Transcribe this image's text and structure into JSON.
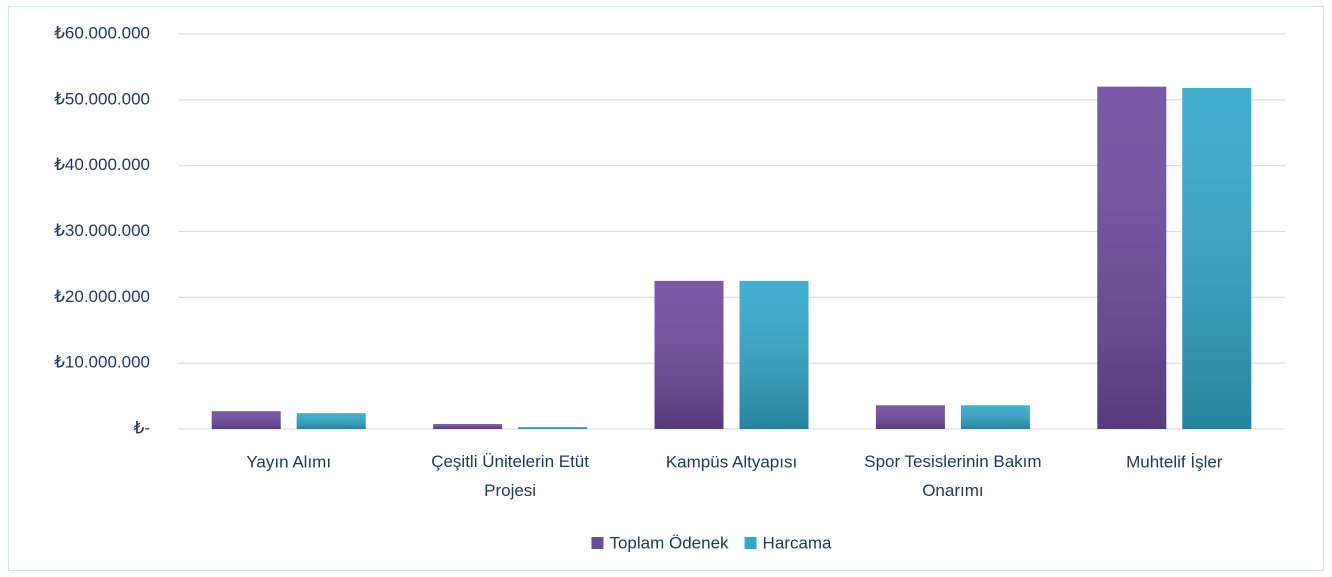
{
  "chart_data": {
    "type": "bar",
    "categories": [
      "Yayın Alımı",
      "Çeşitli Ünitelerin Etüt Projesi",
      "Kampüs Altyapısı",
      "Spor Tesislerinin Bakım Onarımı",
      "Muhtelif İşler"
    ],
    "series": [
      {
        "name": "Toplam Ödenek",
        "color": "#6e4a9e",
        "values": [
          2700000,
          750000,
          22500000,
          3600000,
          52000000
        ]
      },
      {
        "name": "Harcama",
        "color": "#31a7c9",
        "values": [
          2400000,
          300000,
          22500000,
          3600000,
          51800000
        ]
      }
    ],
    "ylim": [
      0,
      60000000
    ],
    "yticks": [
      {
        "value": 0,
        "label": "₺-"
      },
      {
        "value": 10000000,
        "label": "₺10.000.000"
      },
      {
        "value": 20000000,
        "label": "₺20.000.000"
      },
      {
        "value": 30000000,
        "label": "₺30.000.000"
      },
      {
        "value": 40000000,
        "label": "₺40.000.000"
      },
      {
        "value": 50000000,
        "label": "₺50.000.000"
      },
      {
        "value": 60000000,
        "label": "₺60.000.000"
      }
    ],
    "grid": true,
    "legend": "bottom"
  }
}
